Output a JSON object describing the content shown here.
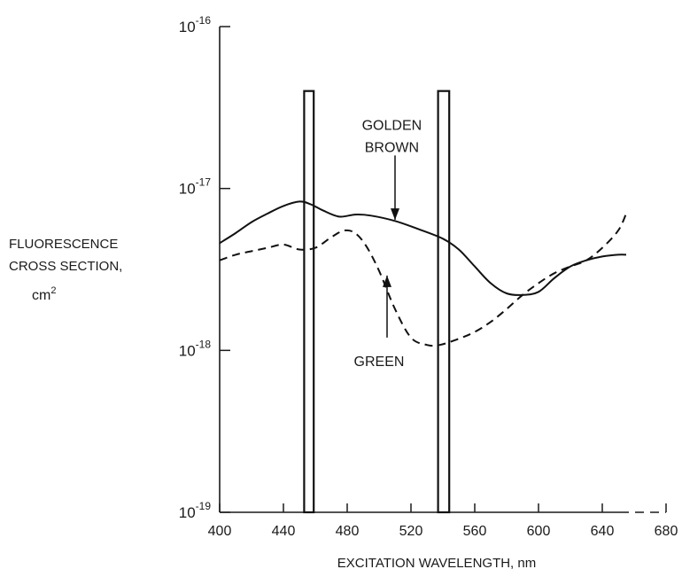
{
  "chart_data": {
    "type": "line",
    "xlabel": "EXCITATION WAVELENGTH, nm",
    "ylabel_lines": [
      "FLUORESCENCE",
      "CROSS SECTION,",
      "cm"
    ],
    "ylabel_superscript": "2",
    "x_scale": "linear",
    "y_scale": "log",
    "xlim": [
      400,
      680
    ],
    "ylim": [
      1e-19,
      1e-16
    ],
    "x_ticks": [
      400,
      440,
      480,
      520,
      560,
      600,
      640,
      680
    ],
    "y_ticks": [
      {
        "value": 1e-19,
        "base": "10",
        "exp": "-19"
      },
      {
        "value": 1e-18,
        "base": "10",
        "exp": "-18"
      },
      {
        "value": 1e-17,
        "base": "10",
        "exp": "-17"
      },
      {
        "value": 1e-16,
        "base": "10",
        "exp": "-16"
      }
    ],
    "series": [
      {
        "name": "GOLDEN BROWN",
        "style": "solid",
        "x": [
          400,
          410,
          420,
          430,
          440,
          450,
          457,
          465,
          475,
          485,
          495,
          510,
          525,
          540,
          550,
          560,
          570,
          580,
          590,
          600,
          610,
          620,
          630,
          640,
          650,
          655
        ],
        "y": [
          4.6e-18,
          5.3e-18,
          6.2e-18,
          7e-18,
          7.8e-18,
          8.3e-18,
          8e-18,
          7.3e-18,
          6.7e-18,
          6.9e-18,
          6.8e-18,
          6.3e-18,
          5.6e-18,
          4.9e-18,
          4.2e-18,
          3.3e-18,
          2.6e-18,
          2.25e-18,
          2.2e-18,
          2.3e-18,
          2.8e-18,
          3.3e-18,
          3.6e-18,
          3.8e-18,
          3.9e-18,
          3.9e-18
        ]
      },
      {
        "name": "GREEN",
        "style": "dashed",
        "x": [
          400,
          410,
          420,
          430,
          440,
          450,
          460,
          470,
          478,
          485,
          492,
          500,
          510,
          520,
          530,
          538,
          550,
          560,
          570,
          580,
          590,
          600,
          610,
          620,
          630,
          640,
          650,
          655
        ],
        "y": [
          3.6e-18,
          3.9e-18,
          4.1e-18,
          4.3e-18,
          4.5e-18,
          4.2e-18,
          4.3e-18,
          5e-18,
          5.5e-18,
          5.3e-18,
          4.4e-18,
          3.1e-18,
          1.8e-18,
          1.2e-18,
          1.08e-18,
          1.08e-18,
          1.18e-18,
          1.3e-18,
          1.5e-18,
          1.8e-18,
          2.2e-18,
          2.6e-18,
          3e-18,
          3.3e-18,
          3.6e-18,
          4.3e-18,
          5.5e-18,
          7e-18
        ]
      }
    ],
    "bars": [
      {
        "x0": 453,
        "x1": 459,
        "top": 4e-17
      },
      {
        "x0": 537,
        "x1": 544,
        "top": 4e-17
      }
    ],
    "annotations": [
      {
        "lines": [
          "GOLDEN",
          "BROWN"
        ],
        "arrow_to": [
          510,
          6.4e-18
        ],
        "arrow_from": [
          510,
          1.6e-17
        ],
        "text_at": [
          508,
          2.3e-17
        ]
      },
      {
        "lines": [
          "GREEN"
        ],
        "arrow_to": [
          505,
          2.9e-18
        ],
        "arrow_from": [
          505,
          1.2e-18
        ],
        "text_at": [
          500,
          8e-19
        ]
      }
    ]
  }
}
